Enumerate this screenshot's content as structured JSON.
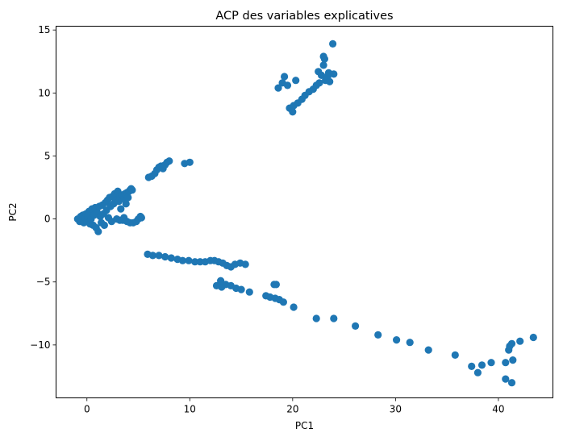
{
  "chart_data": {
    "type": "scatter",
    "title": "ACP des variables explicatives",
    "xlabel": "PC1",
    "ylabel": "PC2",
    "xlim": [
      -3,
      45.3
    ],
    "ylim": [
      -14.2,
      15.3
    ],
    "xticks": [
      0,
      10,
      20,
      30,
      40
    ],
    "yticks": [
      -10,
      -5,
      0,
      5,
      10,
      15
    ],
    "xtick_labels": [
      "0",
      "10",
      "20",
      "30",
      "40"
    ],
    "ytick_labels": [
      "−10",
      "−5",
      "0",
      "5",
      "10",
      "15"
    ],
    "grid": false,
    "marker_color": "#1f77b4",
    "series": [
      {
        "points": [
          [
            -0.9,
            0.0
          ],
          [
            -0.7,
            -0.2
          ],
          [
            -0.6,
            0.2
          ],
          [
            -0.5,
            -0.1
          ],
          [
            -0.4,
            0.3
          ],
          [
            -0.3,
            -0.3
          ],
          [
            -0.2,
            0.1
          ],
          [
            -0.1,
            0.4
          ],
          [
            0.0,
            -0.2
          ],
          [
            0.1,
            0.2
          ],
          [
            0.2,
            0.6
          ],
          [
            0.3,
            -0.4
          ],
          [
            0.4,
            0.0
          ],
          [
            0.5,
            0.8
          ],
          [
            0.6,
            -0.5
          ],
          [
            0.7,
            0.3
          ],
          [
            0.8,
            0.9
          ],
          [
            0.9,
            -0.7
          ],
          [
            1.0,
            0.5
          ],
          [
            1.1,
            -1.0
          ],
          [
            1.2,
            1.0
          ],
          [
            1.3,
            0.2
          ],
          [
            1.4,
            -0.3
          ],
          [
            1.5,
            1.1
          ],
          [
            1.6,
            0.4
          ],
          [
            1.7,
            -0.5
          ],
          [
            1.8,
            1.3
          ],
          [
            1.9,
            0.7
          ],
          [
            2.0,
            1.5
          ],
          [
            2.1,
            0.1
          ],
          [
            2.2,
            1.7
          ],
          [
            2.3,
            1.0
          ],
          [
            2.4,
            -0.2
          ],
          [
            2.5,
            1.8
          ],
          [
            2.6,
            1.2
          ],
          [
            2.7,
            2.0
          ],
          [
            2.8,
            1.5
          ],
          [
            2.9,
            0.0
          ],
          [
            3.0,
            2.2
          ],
          [
            3.1,
            1.4
          ],
          [
            3.2,
            1.8
          ],
          [
            3.3,
            0.8
          ],
          [
            3.4,
            1.9
          ],
          [
            3.5,
            -0.1
          ],
          [
            3.6,
            1.6
          ],
          [
            3.7,
            2.0
          ],
          [
            3.8,
            1.2
          ],
          [
            3.9,
            2.1
          ],
          [
            4.0,
            1.7
          ],
          [
            4.1,
            2.2
          ],
          [
            4.2,
            2.3
          ],
          [
            4.3,
            2.4
          ],
          [
            4.4,
            2.3
          ],
          [
            3.2,
            -0.1
          ],
          [
            3.6,
            0.1
          ],
          [
            3.9,
            -0.2
          ],
          [
            4.2,
            -0.3
          ],
          [
            4.5,
            -0.3
          ],
          [
            4.8,
            -0.2
          ],
          [
            5.0,
            0.0
          ],
          [
            5.2,
            0.2
          ],
          [
            5.3,
            0.1
          ],
          [
            6.0,
            3.3
          ],
          [
            6.3,
            3.4
          ],
          [
            6.6,
            3.6
          ],
          [
            6.8,
            3.9
          ],
          [
            7.0,
            4.1
          ],
          [
            7.2,
            4.2
          ],
          [
            7.4,
            4.0
          ],
          [
            7.6,
            4.3
          ],
          [
            7.8,
            4.5
          ],
          [
            8.0,
            4.6
          ],
          [
            9.5,
            4.4
          ],
          [
            10.0,
            4.5
          ],
          [
            5.9,
            -2.8
          ],
          [
            6.4,
            -2.9
          ],
          [
            7.0,
            -2.9
          ],
          [
            7.6,
            -3.0
          ],
          [
            8.2,
            -3.1
          ],
          [
            8.8,
            -3.2
          ],
          [
            9.3,
            -3.3
          ],
          [
            9.9,
            -3.3
          ],
          [
            10.5,
            -3.4
          ],
          [
            11.0,
            -3.4
          ],
          [
            11.5,
            -3.4
          ],
          [
            12.0,
            -3.3
          ],
          [
            12.4,
            -3.3
          ],
          [
            12.8,
            -3.4
          ],
          [
            13.2,
            -3.5
          ],
          [
            13.6,
            -3.7
          ],
          [
            14.0,
            -3.8
          ],
          [
            14.4,
            -3.6
          ],
          [
            14.9,
            -3.5
          ],
          [
            15.4,
            -3.6
          ],
          [
            12.6,
            -5.3
          ],
          [
            13.1,
            -5.4
          ],
          [
            13.5,
            -5.2
          ],
          [
            14.0,
            -5.3
          ],
          [
            14.5,
            -5.5
          ],
          [
            15.0,
            -5.6
          ],
          [
            15.8,
            -5.8
          ],
          [
            13.0,
            -4.9
          ],
          [
            17.4,
            -6.1
          ],
          [
            17.8,
            -6.2
          ],
          [
            18.3,
            -6.3
          ],
          [
            18.7,
            -6.4
          ],
          [
            19.1,
            -6.6
          ],
          [
            20.1,
            -7.0
          ],
          [
            18.2,
            -5.2
          ],
          [
            18.4,
            -5.2
          ],
          [
            22.3,
            -7.9
          ],
          [
            24.0,
            -7.9
          ],
          [
            26.1,
            -8.5
          ],
          [
            28.3,
            -9.2
          ],
          [
            30.1,
            -9.6
          ],
          [
            31.4,
            -9.8
          ],
          [
            33.2,
            -10.4
          ],
          [
            35.8,
            -10.8
          ],
          [
            37.4,
            -11.7
          ],
          [
            38.0,
            -12.2
          ],
          [
            38.4,
            -11.6
          ],
          [
            39.3,
            -11.4
          ],
          [
            40.7,
            -11.4
          ],
          [
            40.7,
            -12.7
          ],
          [
            41.0,
            -10.4
          ],
          [
            41.1,
            -10.1
          ],
          [
            41.3,
            -9.9
          ],
          [
            41.3,
            -13.0
          ],
          [
            41.4,
            -11.2
          ],
          [
            42.1,
            -9.7
          ],
          [
            43.4,
            -9.4
          ],
          [
            18.6,
            10.4
          ],
          [
            19.0,
            10.8
          ],
          [
            19.2,
            11.3
          ],
          [
            19.5,
            10.6
          ],
          [
            19.7,
            8.8
          ],
          [
            20.0,
            8.5
          ],
          [
            20.1,
            9.0
          ],
          [
            20.3,
            11.0
          ],
          [
            20.5,
            9.2
          ],
          [
            20.9,
            9.5
          ],
          [
            21.2,
            9.8
          ],
          [
            21.6,
            10.1
          ],
          [
            22.0,
            10.3
          ],
          [
            22.3,
            10.6
          ],
          [
            22.5,
            11.7
          ],
          [
            22.6,
            10.8
          ],
          [
            22.8,
            11.4
          ],
          [
            23.0,
            12.2
          ],
          [
            23.0,
            12.9
          ],
          [
            23.1,
            12.7
          ],
          [
            23.2,
            11.0
          ],
          [
            23.4,
            11.3
          ],
          [
            23.5,
            11.6
          ],
          [
            23.6,
            10.9
          ],
          [
            23.9,
            13.9
          ],
          [
            24.0,
            11.5
          ]
        ]
      }
    ]
  }
}
